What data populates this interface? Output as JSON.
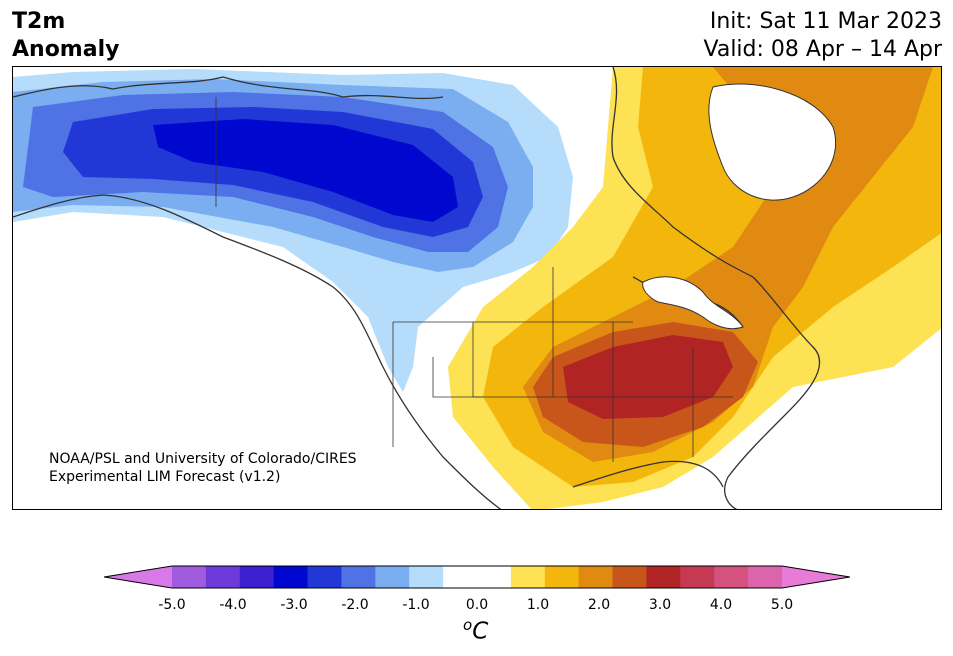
{
  "title": {
    "line1": "T2m",
    "line2": "Anomaly"
  },
  "header_right": {
    "init": "Init: Sat 11 Mar 2023",
    "valid": "Valid: 08 Apr – 14 Apr"
  },
  "credit": {
    "line1": "NOAA/PSL and University of Colorado/CIRES",
    "line2": "Experimental LIM Forecast (v1.2)"
  },
  "colorbar": {
    "colors": [
      "#d77ae8",
      "#a05bde",
      "#6c3bd9",
      "#3b20cf",
      "#0008cf",
      "#2238d6",
      "#4f72e5",
      "#7aaef0",
      "#b5dcfa",
      "#ffffff",
      "#ffffff",
      "#fde254",
      "#f3b60c",
      "#e08a12",
      "#c8561a",
      "#b02424",
      "#c53a52",
      "#d5517e",
      "#dc64aa",
      "#e87ad8"
    ],
    "tick_labels": [
      "-5.0",
      "-4.0",
      "-3.0",
      "-2.0",
      "-1.0",
      "0.0",
      "1.0",
      "2.0",
      "3.0",
      "4.0",
      "5.0"
    ],
    "unit_sup": "o",
    "unit_main": "C"
  },
  "map": {
    "region": "North America",
    "variable": "2m temperature anomaly",
    "fields": {
      "land": "#ffffff",
      "cold_core": "#0008cf",
      "cold_strong": "#2238d6",
      "cold_mid": "#4f72e5",
      "cold_light": "#7aaef0",
      "cold_pale": "#b5dcfa",
      "warm_pale": "#fde254",
      "warm_light": "#f3b60c",
      "warm_mid": "#e08a12",
      "warm_strong": "#c8561a",
      "warm_core": "#b02424",
      "coast": "#333333"
    }
  }
}
